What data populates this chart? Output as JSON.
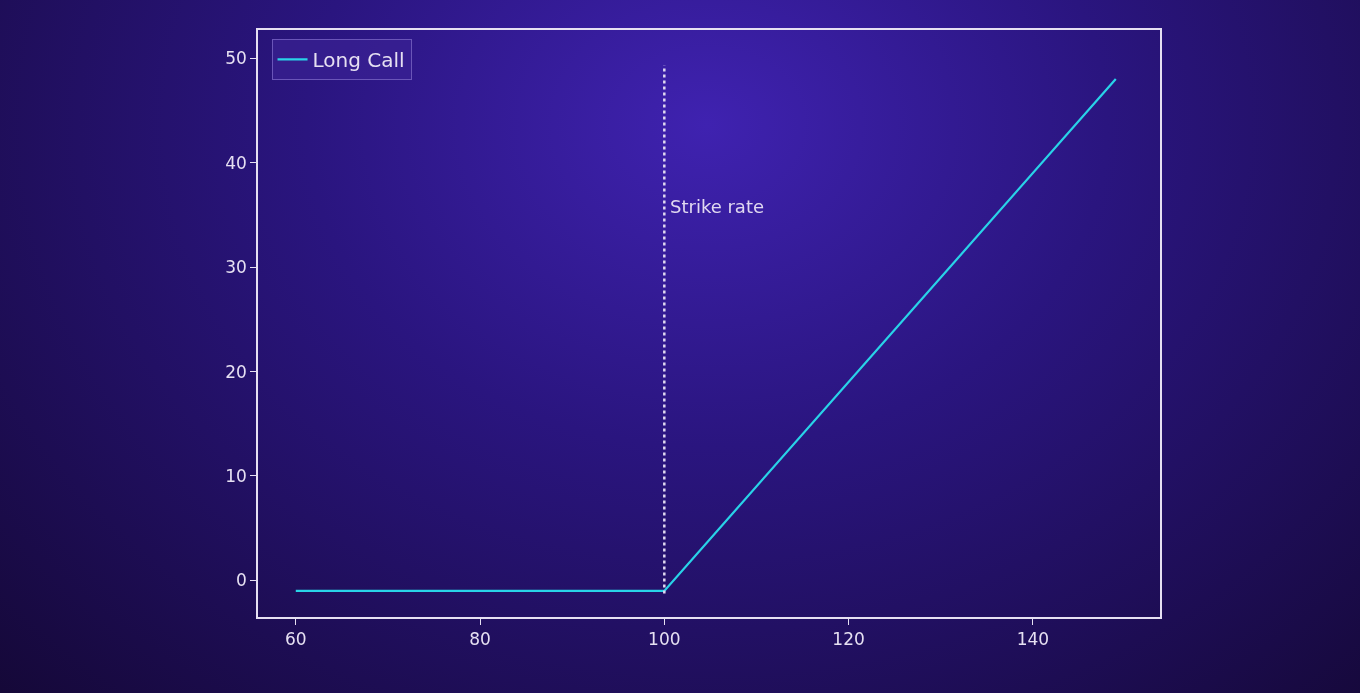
{
  "chart_data": {
    "type": "line",
    "x": [
      60,
      100,
      149
    ],
    "series": [
      {
        "name": "Long Call",
        "color": "#29d3e8",
        "values": [
          -1,
          -1,
          48
        ]
      }
    ],
    "xlim": [
      55.9,
      153.8
    ],
    "xticks": [
      60,
      80,
      100,
      120,
      140
    ],
    "ylim": [
      -3.5,
      52.7
    ],
    "yticks": [
      0,
      10,
      20,
      30,
      40,
      50
    ],
    "ref_lines": [
      {
        "axis": "x",
        "value": 100,
        "label": "Strike rate",
        "color": "#e0d8f0",
        "line_style": "dotted"
      }
    ],
    "legend": "top left",
    "grid": false,
    "marker": "none",
    "line_style": "solid"
  }
}
